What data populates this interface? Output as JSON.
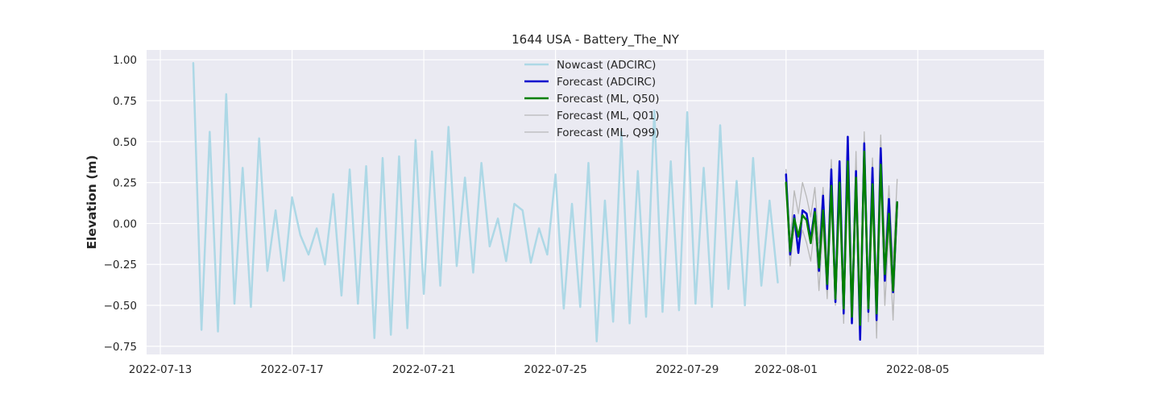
{
  "chart_data": {
    "type": "line",
    "title": "1644 USA - Battery_The_NY",
    "xlabel": "",
    "ylabel": "Elevation (m)",
    "xlim": [
      "2022-07-12T14:00",
      "2022-08-08T20:00"
    ],
    "ylim": [
      -0.8,
      1.06
    ],
    "x_ticks": [
      "2022-07-13",
      "2022-07-17",
      "2022-07-21",
      "2022-07-25",
      "2022-07-29",
      "2022-08-01",
      "2022-08-05"
    ],
    "y_ticks": [
      -0.75,
      -0.5,
      -0.25,
      0.0,
      0.25,
      0.5,
      0.75,
      1.0
    ],
    "y_tick_labels": [
      "−0.75",
      "−0.50",
      "−0.25",
      "0.00",
      "0.25",
      "0.50",
      "0.75",
      "1.00"
    ],
    "grid": true,
    "legend_position": "top-center",
    "background": "#eaeaf2",
    "series": [
      {
        "name": "Nowcast (ADCIRC)",
        "color": "#add8e6",
        "width": 2.5,
        "start": "2022-07-14T00:00",
        "step_hours": 6,
        "values": [
          0.98,
          -0.65,
          0.56,
          -0.66,
          0.79,
          -0.49,
          0.34,
          -0.51,
          0.52,
          -0.29,
          0.08,
          -0.35,
          0.16,
          -0.07,
          -0.19,
          -0.03,
          -0.25,
          0.18,
          -0.44,
          0.33,
          -0.49,
          0.35,
          -0.7,
          0.4,
          -0.68,
          0.41,
          -0.64,
          0.51,
          -0.43,
          0.44,
          -0.38,
          0.59,
          -0.26,
          0.28,
          -0.3,
          0.37,
          -0.14,
          0.03,
          -0.23,
          0.12,
          0.08,
          -0.24,
          -0.03,
          -0.19,
          0.3,
          -0.52,
          0.12,
          -0.51,
          0.37,
          -0.72,
          0.14,
          -0.6,
          0.56,
          -0.61,
          0.32,
          -0.57,
          0.69,
          -0.54,
          0.38,
          -0.53,
          0.68,
          -0.49,
          0.34,
          -0.51,
          0.6,
          -0.4,
          0.26,
          -0.5,
          0.4,
          -0.38,
          0.14,
          -0.36
        ]
      },
      {
        "name": "Forecast (ADCIRC)",
        "color": "#0000cd",
        "width": 2.5,
        "start": "2022-08-01T00:00",
        "step_hours": 3,
        "values": [
          0.3,
          -0.19,
          0.05,
          -0.18,
          0.08,
          0.06,
          -0.1,
          0.09,
          -0.29,
          0.17,
          -0.4,
          0.33,
          -0.48,
          0.38,
          -0.55,
          0.53,
          -0.61,
          0.32,
          -0.71,
          0.49,
          -0.54,
          0.34,
          -0.59,
          0.46,
          -0.35,
          0.15,
          -0.42,
          0.13
        ]
      },
      {
        "name": "Forecast (ML, Q50)",
        "color": "#008000",
        "width": 2.5,
        "start": "2022-08-01T00:00",
        "step_hours": 3,
        "values": [
          0.25,
          -0.17,
          0.03,
          -0.08,
          0.05,
          0.02,
          -0.12,
          0.07,
          -0.27,
          0.08,
          -0.37,
          0.23,
          -0.46,
          0.25,
          -0.52,
          0.38,
          -0.57,
          0.28,
          -0.62,
          0.44,
          -0.52,
          0.24,
          -0.55,
          0.36,
          -0.31,
          0.06,
          -0.41,
          0.13
        ]
      },
      {
        "name": "Forecast (ML, Q01)",
        "color": "#b8b8b8",
        "width": 1.3,
        "start": "2022-08-01T00:00",
        "step_hours": 3,
        "values": [
          0.2,
          -0.26,
          -0.02,
          -0.16,
          -0.04,
          -0.12,
          -0.23,
          0.0,
          -0.41,
          -0.02,
          -0.46,
          0.13,
          -0.5,
          0.15,
          -0.61,
          0.28,
          -0.58,
          0.18,
          -0.66,
          0.38,
          -0.6,
          0.14,
          -0.7,
          0.28,
          -0.5,
          -0.05,
          -0.59,
          0.05
        ]
      },
      {
        "name": "Forecast (ML, Q99)",
        "color": "#b8b8b8",
        "width": 1.3,
        "start": "2022-08-01T00:00",
        "step_hours": 3,
        "values": [
          0.33,
          -0.12,
          0.2,
          0.06,
          0.25,
          0.16,
          0.04,
          0.22,
          -0.12,
          0.22,
          -0.28,
          0.39,
          -0.38,
          0.36,
          -0.45,
          0.52,
          -0.49,
          0.44,
          -0.52,
          0.56,
          -0.43,
          0.4,
          -0.37,
          0.54,
          -0.16,
          0.23,
          -0.24,
          0.27
        ]
      }
    ]
  }
}
